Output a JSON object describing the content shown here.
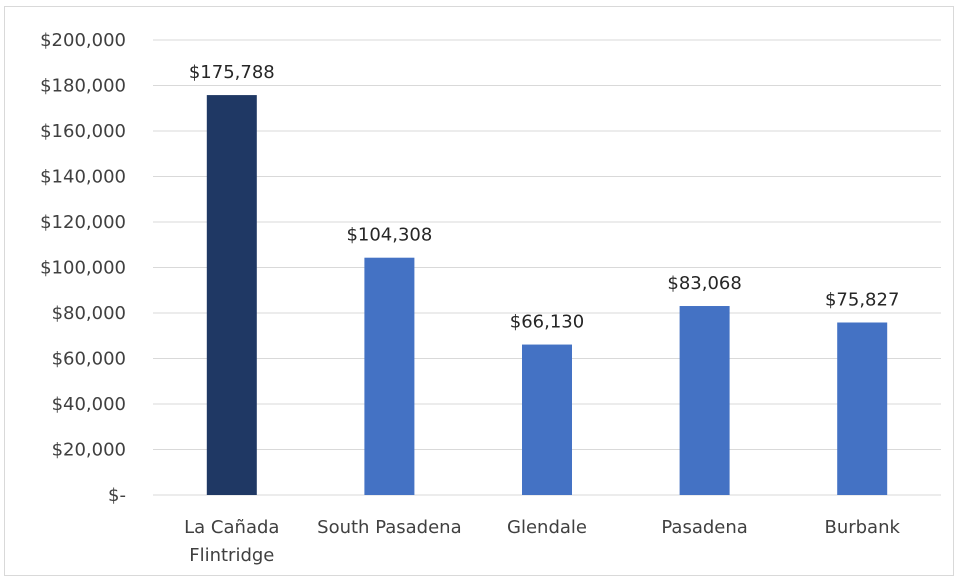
{
  "chart_data": {
    "type": "bar",
    "title": "",
    "xlabel": "",
    "ylabel": "",
    "categories": [
      [
        "La Cañada",
        "Flintridge"
      ],
      [
        "South Pasadena"
      ],
      [
        "Glendale"
      ],
      [
        "Pasadena"
      ],
      [
        "Burbank"
      ]
    ],
    "values": [
      175788,
      104308,
      66130,
      83068,
      75827
    ],
    "data_labels": [
      "$175,788",
      "$104,308",
      "$66,130",
      "$83,068",
      "$75,827"
    ],
    "bar_colors": [
      "#1f3864",
      "#4472c4",
      "#4472c4",
      "#4472c4",
      "#4472c4"
    ],
    "ylim": [
      0,
      200000
    ],
    "y_ticks": [
      0,
      20000,
      40000,
      60000,
      80000,
      100000,
      120000,
      140000,
      160000,
      180000,
      200000
    ],
    "y_tick_labels": [
      "$-",
      "$20,000",
      "$40,000",
      "$60,000",
      "$80,000",
      "$100,000",
      "$120,000",
      "$140,000",
      "$160,000",
      "$180,000",
      "$200,000"
    ],
    "grid": true,
    "legend": "none",
    "colors": {
      "grid": "#d9d9d9",
      "axis": "#d9d9d9",
      "text": "#404040"
    }
  }
}
